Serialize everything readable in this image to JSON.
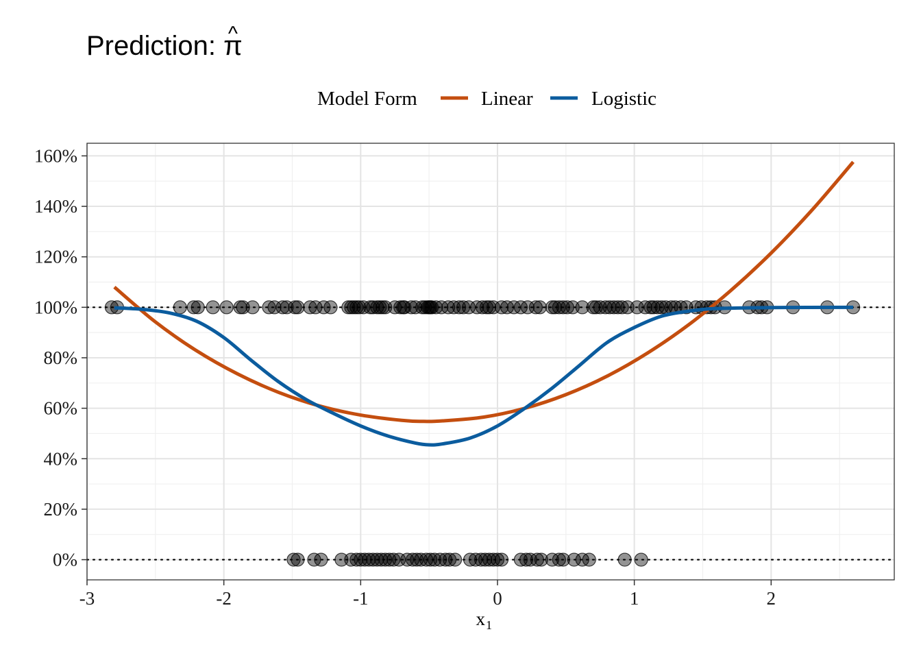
{
  "chart_data": {
    "type": "line",
    "title": "Prediction: ",
    "title_symbol": "π",
    "title_accent": "^",
    "xlabel": "x",
    "xlabel_subscript": "1",
    "ylabel": "",
    "xlim": [
      -3.0,
      2.9
    ],
    "ylim": [
      -0.08,
      1.65
    ],
    "x_ticks": [
      -3,
      -2,
      -1,
      0,
      1,
      2
    ],
    "x_tick_labels": [
      "-3",
      "-2",
      "-1",
      "0",
      "1",
      "2"
    ],
    "y_ticks": [
      0,
      0.2,
      0.4,
      0.6,
      0.8,
      1.0,
      1.2,
      1.4,
      1.6
    ],
    "y_tick_labels": [
      "0%",
      "20%",
      "40%",
      "60%",
      "80%",
      "100%",
      "120%",
      "140%",
      "160%"
    ],
    "grid": true,
    "reference_lines": [
      0,
      1
    ],
    "legend": {
      "title": "Model Form",
      "position": "top",
      "entries": [
        "Linear",
        "Logistic"
      ]
    },
    "series": [
      {
        "name": "Linear",
        "color": "#c44e0f",
        "x": [
          -2.8,
          -2.5,
          -2.2,
          -1.9,
          -1.6,
          -1.3,
          -1.0,
          -0.7,
          -0.55,
          -0.4,
          -0.1,
          0.2,
          0.5,
          0.8,
          1.1,
          1.4,
          1.7,
          2.0,
          2.3,
          2.6
        ],
        "y": [
          1.08,
          0.942,
          0.828,
          0.736,
          0.663,
          0.609,
          0.573,
          0.552,
          0.548,
          0.55,
          0.565,
          0.6,
          0.654,
          0.727,
          0.82,
          0.932,
          1.064,
          1.215,
          1.386,
          1.576
        ]
      },
      {
        "name": "Logistic",
        "color": "#0b5c9e",
        "x": [
          -2.8,
          -2.6,
          -2.4,
          -2.2,
          -2.0,
          -1.8,
          -1.6,
          -1.4,
          -1.2,
          -1.0,
          -0.8,
          -0.6,
          -0.5,
          -0.4,
          -0.2,
          0.0,
          0.2,
          0.4,
          0.6,
          0.8,
          1.0,
          1.2,
          1.4,
          1.6,
          2.0,
          2.6
        ],
        "y": [
          0.998,
          0.992,
          0.978,
          0.945,
          0.88,
          0.79,
          0.705,
          0.635,
          0.58,
          0.53,
          0.49,
          0.462,
          0.455,
          0.459,
          0.482,
          0.53,
          0.6,
          0.68,
          0.77,
          0.86,
          0.92,
          0.965,
          0.985,
          0.995,
          0.999,
          1.0
        ]
      }
    ],
    "observations": {
      "color": "#000000",
      "y1_x": [
        -2.82,
        -2.78,
        -2.32,
        -2.22,
        -2.19,
        -2.08,
        -1.98,
        -1.88,
        -1.86,
        -1.79,
        -1.67,
        -1.63,
        -1.57,
        -1.54,
        -1.48,
        -1.46,
        -1.37,
        -1.33,
        -1.27,
        -1.22,
        -1.09,
        -1.07,
        -1.05,
        -1.03,
        -1.01,
        -0.98,
        -0.93,
        -0.91,
        -0.88,
        -0.86,
        -0.84,
        -0.82,
        -0.75,
        -0.71,
        -0.69,
        -0.68,
        -0.63,
        -0.6,
        -0.55,
        -0.53,
        -0.51,
        -0.5,
        -0.49,
        -0.48,
        -0.45,
        -0.41,
        -0.36,
        -0.32,
        -0.28,
        -0.25,
        -0.21,
        -0.15,
        -0.11,
        -0.08,
        -0.06,
        -0.03,
        0.03,
        0.07,
        0.12,
        0.17,
        0.22,
        0.28,
        0.31,
        0.4,
        0.42,
        0.45,
        0.48,
        0.51,
        0.55,
        0.62,
        0.7,
        0.72,
        0.75,
        0.79,
        0.82,
        0.85,
        0.88,
        0.91,
        0.95,
        1.02,
        1.08,
        1.12,
        1.14,
        1.17,
        1.2,
        1.23,
        1.27,
        1.3,
        1.34,
        1.38,
        1.45,
        1.49,
        1.53,
        1.56,
        1.59,
        1.66,
        1.84,
        1.9,
        1.93,
        1.97,
        2.16,
        2.41,
        2.6
      ],
      "y0_x": [
        -1.49,
        -1.46,
        -1.34,
        -1.29,
        -1.14,
        -1.07,
        -1.03,
        -1.0,
        -0.97,
        -0.94,
        -0.91,
        -0.88,
        -0.85,
        -0.82,
        -0.79,
        -0.76,
        -0.72,
        -0.66,
        -0.62,
        -0.59,
        -0.56,
        -0.52,
        -0.49,
        -0.46,
        -0.42,
        -0.38,
        -0.35,
        -0.31,
        -0.2,
        -0.16,
        -0.12,
        -0.09,
        -0.06,
        -0.03,
        0.0,
        0.03,
        0.17,
        0.21,
        0.24,
        0.29,
        0.32,
        0.4,
        0.45,
        0.48,
        0.56,
        0.62,
        0.67,
        0.93,
        1.05
      ]
    }
  }
}
